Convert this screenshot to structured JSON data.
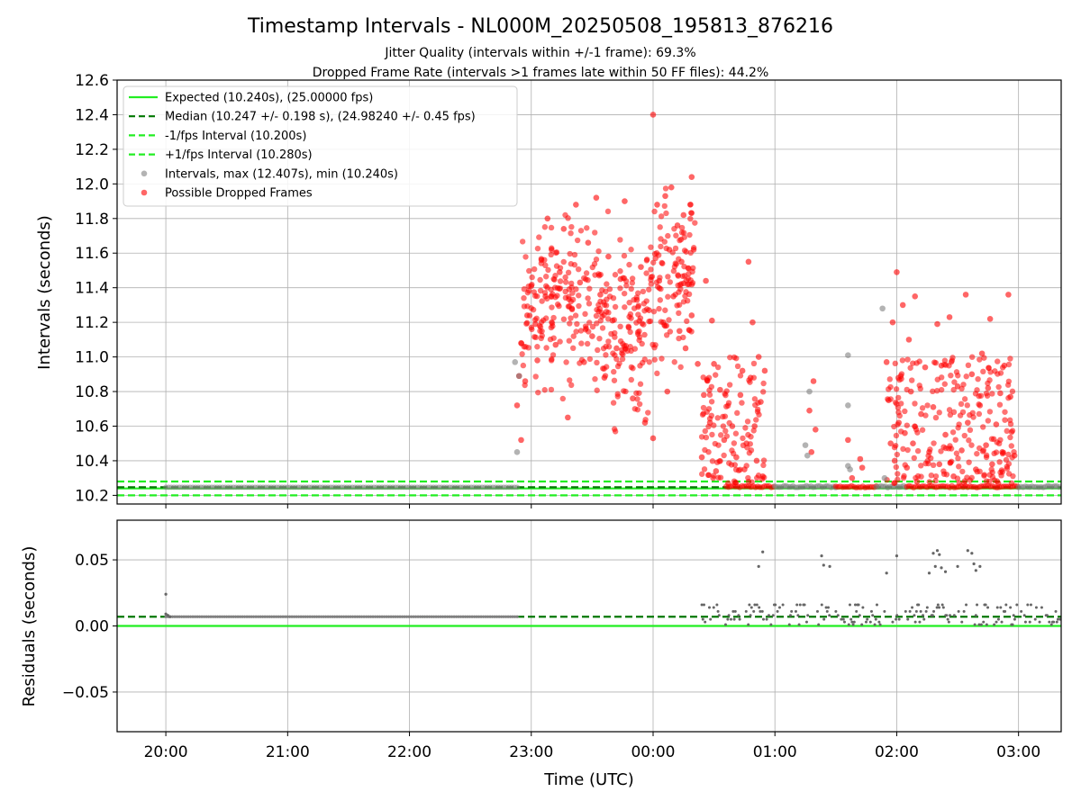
{
  "chart_data": {
    "type": "scatter",
    "title": "Timestamp Intervals - NL000M_20250508_195813_876216",
    "subtitle1": "Jitter Quality (intervals within +/-1 frame): 69.3%",
    "subtitle2": "Dropped Frame Rate (intervals >1 frames late within 50 FF files): 44.2%",
    "top_panel": {
      "ylabel": "Intervals (seconds)",
      "ylim": [
        10.15,
        12.6
      ],
      "yticks": [
        "10.2",
        "10.4",
        "10.6",
        "10.8",
        "11.0",
        "11.2",
        "11.4",
        "11.6",
        "11.8",
        "12.0",
        "12.2",
        "12.4",
        "12.6"
      ],
      "expected": 10.24,
      "median": 10.247,
      "minus_fps": 10.2,
      "plus_fps": 10.28,
      "legend_placement": "top-left",
      "legend": [
        {
          "label": "Expected (10.240s), (25.00000 fps)",
          "style": "solid",
          "color": "#22ee22"
        },
        {
          "label": "Median (10.247 +/- 0.198 s), (24.98240 +/- 0.45 fps)",
          "style": "dashed",
          "color": "#007700"
        },
        {
          "label": "-1/fps Interval (10.200s)",
          "style": "dashed",
          "color": "#22ee22"
        },
        {
          "label": "+1/fps Interval (10.280s)",
          "style": "dashed",
          "color": "#22ee22"
        },
        {
          "label": "Intervals, max (12.407s), min (10.240s)",
          "style": "marker",
          "color": "#808080"
        },
        {
          "label": "Possible Dropped Frames",
          "style": "marker",
          "color": "#ff0000"
        }
      ]
    },
    "bottom_panel": {
      "ylabel": "Residuals (seconds)",
      "ylim": [
        -0.08,
        0.08
      ],
      "yticks": [
        "−0.05",
        "0.00",
        "0.05"
      ],
      "median_residual": 0.007
    },
    "xlabel": "Time (UTC)",
    "xticks": [
      "20:00",
      "21:00",
      "22:00",
      "23:00",
      "00:00",
      "01:00",
      "02:00",
      "03:00"
    ],
    "x_range_hours": [
      "19:36",
      "03:21"
    ],
    "grid": true,
    "colors": {
      "expected": "#22ee22",
      "median": "#007700",
      "intervals": "#808080",
      "dropped": "#ff0000"
    },
    "dropped_frame_points": [
      {
        "t": "22:53",
        "y": 10.72
      },
      {
        "t": "22:54",
        "y": 10.89
      },
      {
        "t": "22:55",
        "y": 10.52
      },
      {
        "t": "22:55",
        "y": 11.08
      },
      {
        "t": "22:57",
        "y": 10.86
      },
      {
        "t": "22:58",
        "y": 11.24
      },
      {
        "t": "23:00",
        "y": 11.41
      },
      {
        "t": "23:02",
        "y": 11.19
      },
      {
        "t": "23:03",
        "y": 10.98
      },
      {
        "t": "23:05",
        "y": 11.56
      },
      {
        "t": "23:07",
        "y": 11.35
      },
      {
        "t": "23:08",
        "y": 11.8
      },
      {
        "t": "23:10",
        "y": 11.62
      },
      {
        "t": "23:12",
        "y": 11.07
      },
      {
        "t": "23:14",
        "y": 11.49
      },
      {
        "t": "23:16",
        "y": 11.74
      },
      {
        "t": "23:18",
        "y": 10.65
      },
      {
        "t": "23:20",
        "y": 11.28
      },
      {
        "t": "23:22",
        "y": 11.88
      },
      {
        "t": "23:24",
        "y": 11.43
      },
      {
        "t": "23:26",
        "y": 10.97
      },
      {
        "t": "23:28",
        "y": 11.66
      },
      {
        "t": "23:30",
        "y": 11.12
      },
      {
        "t": "23:32",
        "y": 11.92
      },
      {
        "t": "23:34",
        "y": 11.36
      },
      {
        "t": "23:36",
        "y": 10.88
      },
      {
        "t": "23:38",
        "y": 11.58
      },
      {
        "t": "23:40",
        "y": 11.21
      },
      {
        "t": "23:42",
        "y": 11.05
      },
      {
        "t": "23:44",
        "y": 11.45
      },
      {
        "t": "23:46",
        "y": 11.9
      },
      {
        "t": "23:48",
        "y": 11.17
      },
      {
        "t": "23:50",
        "y": 10.76
      },
      {
        "t": "23:52",
        "y": 11.33
      },
      {
        "t": "23:54",
        "y": 11.52
      },
      {
        "t": "23:56",
        "y": 10.62
      },
      {
        "t": "23:58",
        "y": 11.27
      },
      {
        "t": "00:00",
        "y": 10.53
      },
      {
        "t": "00:00",
        "y": 12.4
      },
      {
        "t": "00:02",
        "y": 11.88
      },
      {
        "t": "00:03",
        "y": 11.44
      },
      {
        "t": "00:05",
        "y": 11.2
      },
      {
        "t": "00:06",
        "y": 11.93
      },
      {
        "t": "00:07",
        "y": 10.8
      },
      {
        "t": "00:08",
        "y": 11.62
      },
      {
        "t": "00:09",
        "y": 11.98
      },
      {
        "t": "00:10",
        "y": 11.35
      },
      {
        "t": "00:12",
        "y": 11.76
      },
      {
        "t": "00:13",
        "y": 11.15
      },
      {
        "t": "00:14",
        "y": 11.55
      },
      {
        "t": "00:15",
        "y": 11.82
      },
      {
        "t": "00:16",
        "y": 11.05
      },
      {
        "t": "00:17",
        "y": 11.42
      },
      {
        "t": "00:19",
        "y": 12.04
      },
      {
        "t": "00:19",
        "y": 11.24
      },
      {
        "t": "00:20",
        "y": 11.62
      },
      {
        "t": "00:22",
        "y": 10.96
      },
      {
        "t": "00:24",
        "y": 10.42
      },
      {
        "t": "00:25",
        "y": 10.78
      },
      {
        "t": "00:26",
        "y": 11.44
      },
      {
        "t": "00:28",
        "y": 10.62
      },
      {
        "t": "00:29",
        "y": 11.21
      },
      {
        "t": "00:30",
        "y": 10.96
      },
      {
        "t": "00:31",
        "y": 10.34
      },
      {
        "t": "00:33",
        "y": 10.81
      },
      {
        "t": "00:35",
        "y": 10.52
      },
      {
        "t": "00:37",
        "y": 10.27
      },
      {
        "t": "00:39",
        "y": 10.6
      },
      {
        "t": "00:41",
        "y": 10.42
      },
      {
        "t": "00:43",
        "y": 10.78
      },
      {
        "t": "00:44",
        "y": 10.92
      },
      {
        "t": "00:45",
        "y": 10.35
      },
      {
        "t": "00:46",
        "y": 10.5
      },
      {
        "t": "00:47",
        "y": 11.55
      },
      {
        "t": "00:48",
        "y": 10.88
      },
      {
        "t": "00:49",
        "y": 11.2
      },
      {
        "t": "00:50",
        "y": 10.6
      },
      {
        "t": "00:51",
        "y": 10.4
      },
      {
        "t": "00:52",
        "y": 11.0
      },
      {
        "t": "00:53",
        "y": 10.74
      },
      {
        "t": "00:54",
        "y": 10.31
      },
      {
        "t": "00:55",
        "y": 10.92
      },
      {
        "t": "01:17",
        "y": 10.69
      },
      {
        "t": "01:18",
        "y": 10.45
      },
      {
        "t": "01:19",
        "y": 10.86
      },
      {
        "t": "01:20",
        "y": 10.58
      },
      {
        "t": "01:36",
        "y": 10.52
      },
      {
        "t": "01:38",
        "y": 10.3
      },
      {
        "t": "01:42",
        "y": 10.41
      },
      {
        "t": "01:43",
        "y": 10.36
      },
      {
        "t": "01:55",
        "y": 10.97
      },
      {
        "t": "01:56",
        "y": 10.75
      },
      {
        "t": "01:57",
        "y": 10.5
      },
      {
        "t": "01:58",
        "y": 11.2
      },
      {
        "t": "01:59",
        "y": 10.4
      },
      {
        "t": "02:00",
        "y": 11.49
      },
      {
        "t": "02:01",
        "y": 10.62
      },
      {
        "t": "02:02",
        "y": 10.89
      },
      {
        "t": "02:03",
        "y": 11.3
      },
      {
        "t": "02:04",
        "y": 10.56
      },
      {
        "t": "02:05",
        "y": 10.36
      },
      {
        "t": "02:06",
        "y": 11.1
      },
      {
        "t": "02:07",
        "y": 10.8
      },
      {
        "t": "02:08",
        "y": 10.5
      },
      {
        "t": "02:09",
        "y": 11.35
      },
      {
        "t": "02:10",
        "y": 10.28
      },
      {
        "t": "02:12",
        "y": 10.67
      },
      {
        "t": "02:14",
        "y": 10.94
      },
      {
        "t": "02:16",
        "y": 10.45
      },
      {
        "t": "02:18",
        "y": 10.71
      },
      {
        "t": "02:20",
        "y": 11.19
      },
      {
        "t": "02:21",
        "y": 10.38
      },
      {
        "t": "02:22",
        "y": 10.95
      },
      {
        "t": "02:24",
        "y": 10.55
      },
      {
        "t": "02:26",
        "y": 11.23
      },
      {
        "t": "02:28",
        "y": 10.31
      },
      {
        "t": "02:30",
        "y": 10.83
      },
      {
        "t": "02:32",
        "y": 10.46
      },
      {
        "t": "02:34",
        "y": 11.36
      },
      {
        "t": "02:35",
        "y": 10.62
      },
      {
        "t": "02:37",
        "y": 10.9
      },
      {
        "t": "02:39",
        "y": 10.35
      },
      {
        "t": "02:41",
        "y": 10.72
      },
      {
        "t": "02:42",
        "y": 11.02
      },
      {
        "t": "02:44",
        "y": 10.49
      },
      {
        "t": "02:45",
        "y": 10.82
      },
      {
        "t": "02:46",
        "y": 11.22
      },
      {
        "t": "02:47",
        "y": 10.38
      },
      {
        "t": "02:49",
        "y": 10.61
      },
      {
        "t": "02:50",
        "y": 10.27
      },
      {
        "t": "02:51",
        "y": 10.79
      },
      {
        "t": "02:52",
        "y": 10.45
      },
      {
        "t": "02:53",
        "y": 10.95
      },
      {
        "t": "02:55",
        "y": 11.36
      },
      {
        "t": "02:56",
        "y": 10.77
      },
      {
        "t": "02:58",
        "y": 10.43
      }
    ],
    "interval_points": [
      {
        "t": "22:52",
        "y": 10.97
      },
      {
        "t": "22:53",
        "y": 10.45
      },
      {
        "t": "22:54",
        "y": 10.89
      },
      {
        "t": "01:15",
        "y": 10.49
      },
      {
        "t": "01:16",
        "y": 10.43
      },
      {
        "t": "01:17",
        "y": 10.8
      },
      {
        "t": "01:36",
        "y": 11.01
      },
      {
        "t": "01:36",
        "y": 10.72
      },
      {
        "t": "01:36",
        "y": 10.37
      },
      {
        "t": "01:37",
        "y": 10.35
      },
      {
        "t": "01:53",
        "y": 11.28
      },
      {
        "t": "01:54",
        "y": 10.3
      }
    ],
    "residual_points": [
      {
        "t": "20:00",
        "y": 0.024
      },
      {
        "t": "20:00",
        "y": 0.009
      },
      {
        "t": "20:01",
        "y": 0.008
      },
      {
        "t": "20:02",
        "y": 0.007
      },
      {
        "t": "00:52",
        "y": 0.045
      },
      {
        "t": "00:54",
        "y": 0.056
      },
      {
        "t": "01:23",
        "y": 0.053
      },
      {
        "t": "01:24",
        "y": 0.046
      },
      {
        "t": "01:27",
        "y": 0.045
      },
      {
        "t": "01:55",
        "y": 0.04
      },
      {
        "t": "02:00",
        "y": 0.053
      },
      {
        "t": "02:16",
        "y": 0.04
      },
      {
        "t": "02:18",
        "y": 0.055
      },
      {
        "t": "02:19",
        "y": 0.045
      },
      {
        "t": "02:20",
        "y": 0.057
      },
      {
        "t": "02:21",
        "y": 0.054
      },
      {
        "t": "02:22",
        "y": 0.044
      },
      {
        "t": "02:24",
        "y": 0.041
      },
      {
        "t": "02:30",
        "y": 0.045
      },
      {
        "t": "02:35",
        "y": 0.057
      },
      {
        "t": "02:37",
        "y": 0.055
      },
      {
        "t": "02:38",
        "y": 0.047
      },
      {
        "t": "02:39",
        "y": 0.042
      },
      {
        "t": "02:41",
        "y": 0.045
      }
    ]
  }
}
